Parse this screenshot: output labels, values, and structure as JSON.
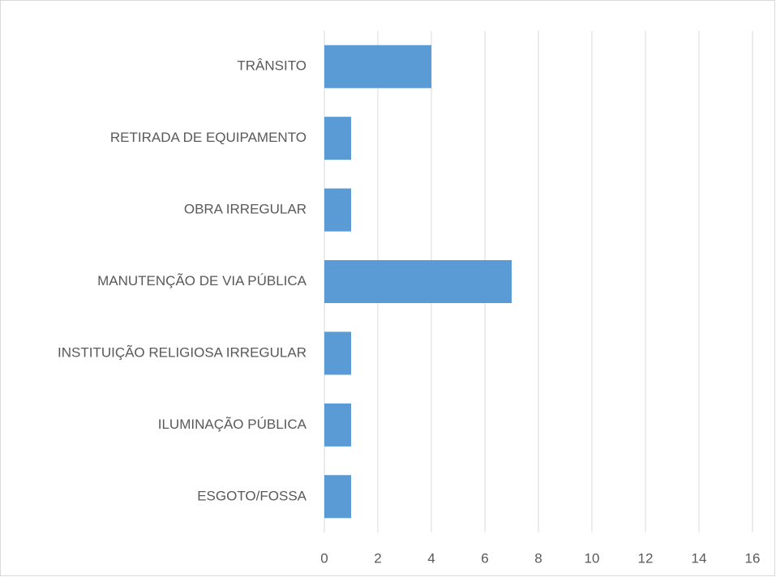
{
  "chart_data": {
    "type": "bar",
    "orientation": "horizontal",
    "categories": [
      "TRÂNSITO",
      "RETIRADA DE EQUIPAMENTO",
      "OBRA IRREGULAR",
      "MANUTENÇÃO DE VIA PÚBLICA",
      "INSTITUIÇÃO RELIGIOSA IRREGULAR",
      "ILUMINAÇÃO PÚBLICA",
      "ESGOTO/FOSSA"
    ],
    "values": [
      4,
      1,
      1,
      7,
      1,
      1,
      1
    ],
    "color": "#5b9bd5",
    "xlim": [
      0,
      16
    ],
    "xticks": [
      0,
      2,
      4,
      6,
      8,
      10,
      12,
      14,
      16
    ],
    "grid": true
  }
}
